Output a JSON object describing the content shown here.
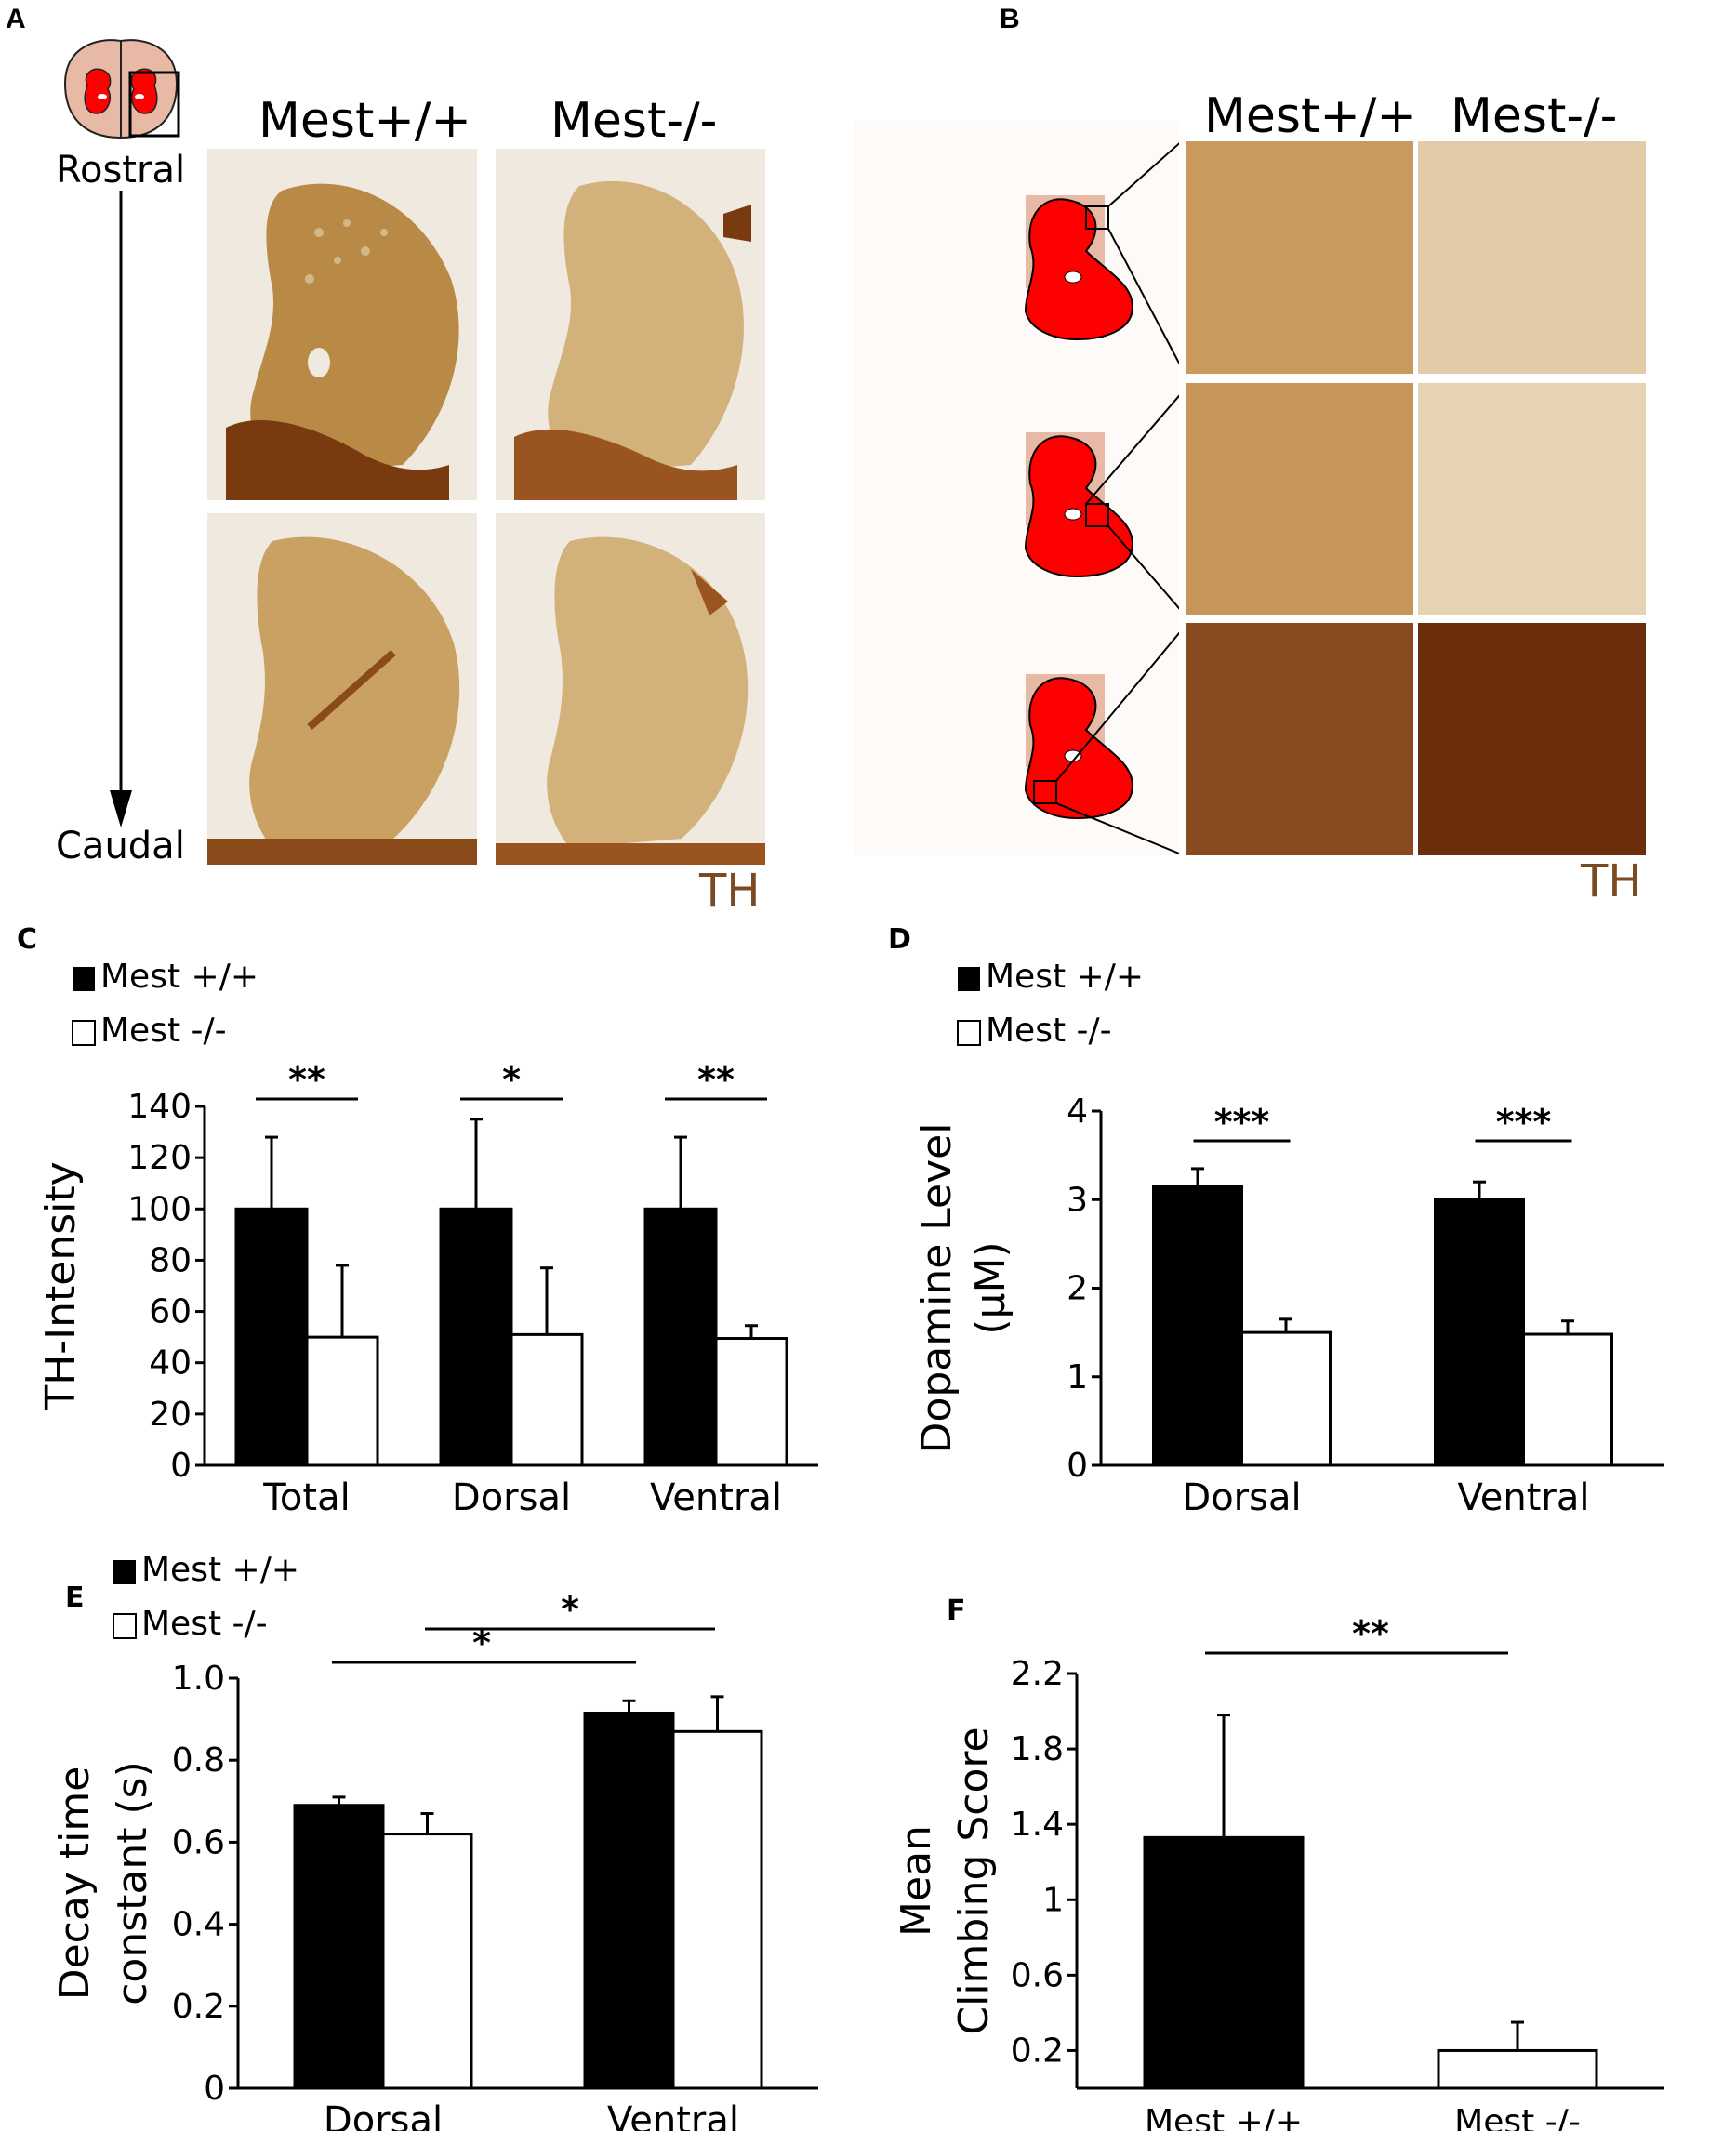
{
  "colors": {
    "tissue_dark": "#7a3a10",
    "tissue_mid": "#b98a46",
    "tissue_light": "#d2b27a",
    "background_section": "#efe9df",
    "schematic_red": "#ff0000",
    "schematic_pink": "#e8b9a5",
    "th_label": "#7a4a22",
    "bar_wt": "#000000",
    "bar_ko": "#ffffff"
  },
  "panel_a": {
    "label": "A",
    "col_labels": [
      "Mest+/+",
      "Mest-/-"
    ],
    "top_label": "Rostral",
    "bottom_label": "Caudal",
    "stain_label": "TH"
  },
  "panel_b": {
    "label": "B",
    "col_labels": [
      "Mest+/+",
      "Mest-/-"
    ],
    "stain_label": "TH"
  },
  "legend": {
    "wt": "Mest +/+",
    "ko": "Mest -/-"
  },
  "chart_data": [
    {
      "panel": "C",
      "type": "bar",
      "ylabel": "TH-Intensity",
      "xlabel": "",
      "categories": [
        "Total",
        "Dorsal",
        "Ventral"
      ],
      "ylim": [
        0,
        140
      ],
      "yticks": [
        "0",
        "20",
        "40",
        "60",
        "80",
        "100",
        "120",
        "140"
      ],
      "series": [
        {
          "name": "Mest +/+",
          "values": [
            100,
            100,
            100
          ],
          "errors": [
            28,
            35,
            28
          ]
        },
        {
          "name": "Mest -/-",
          "values": [
            50,
            51,
            49.5
          ],
          "errors": [
            28,
            26,
            5
          ]
        }
      ],
      "significance": [
        "**",
        "*",
        "**"
      ]
    },
    {
      "panel": "D",
      "type": "bar",
      "ylabel_lines": [
        "Dopamine Level",
        "(μM)"
      ],
      "xlabel": "",
      "categories": [
        "Dorsal",
        "Ventral"
      ],
      "ylim": [
        0,
        4
      ],
      "yticks": [
        "0",
        "1",
        "2",
        "3",
        "4"
      ],
      "series": [
        {
          "name": "Mest +/+",
          "values": [
            3.15,
            3.0
          ],
          "errors": [
            0.2,
            0.2
          ]
        },
        {
          "name": "Mest -/-",
          "values": [
            1.5,
            1.48
          ],
          "errors": [
            0.15,
            0.15
          ]
        }
      ],
      "significance": [
        "***",
        "***"
      ]
    },
    {
      "panel": "E",
      "type": "bar",
      "ylabel_lines": [
        "Decay time",
        "constant (s)"
      ],
      "xlabel": "",
      "categories": [
        "Dorsal",
        "Ventral"
      ],
      "ylim": [
        0,
        1.0
      ],
      "yticks": [
        "0",
        "0.2",
        "0.4",
        "0.6",
        "0.8",
        "1.0"
      ],
      "series": [
        {
          "name": "Mest +/+",
          "values": [
            0.69,
            0.915
          ],
          "errors": [
            0.02,
            0.03
          ]
        },
        {
          "name": "Mest -/-",
          "values": [
            0.62,
            0.87
          ],
          "errors": [
            0.05,
            0.085
          ]
        }
      ],
      "significance": [
        "*",
        "*"
      ]
    },
    {
      "panel": "F",
      "type": "bar",
      "ylabel_lines": [
        "Mean",
        "Climbing Score"
      ],
      "xlabel": "",
      "categories": [
        "Mest +/+",
        "Mest -/-"
      ],
      "ylim": [
        0,
        2.2
      ],
      "yticks": [
        "0.2",
        "0.6",
        "1",
        "1.4",
        "1.8",
        "2.2"
      ],
      "values": [
        1.33,
        0.2
      ],
      "errors": [
        0.65,
        0.15
      ],
      "significance": [
        "**"
      ]
    }
  ]
}
